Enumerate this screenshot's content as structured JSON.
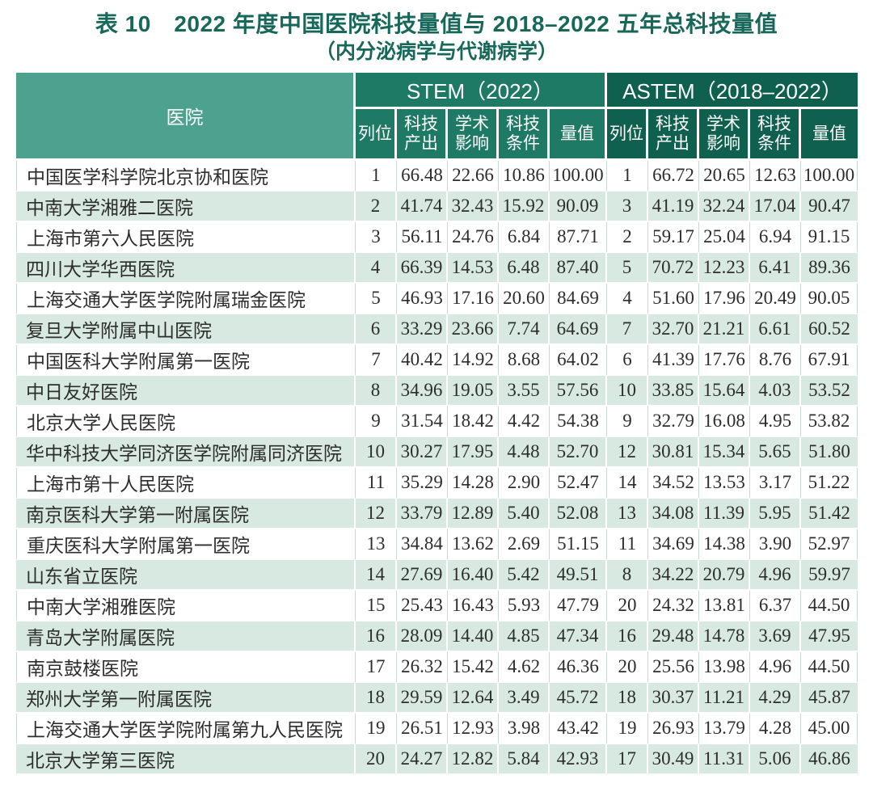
{
  "title": {
    "line1": "表 10　2022 年度中国医院科技量值与 2018–2022 五年总科技量值",
    "line2": "（内分泌病学与代谢病学）"
  },
  "colors": {
    "title_green": "#17685a",
    "hospital_header_bg": "#4ca28e",
    "stem_header_bg": "#1e7a64",
    "astem_header_bg": "#10604f",
    "stripe_mint": "#d8e9e1",
    "stripe_white": "#ffffff"
  },
  "table": {
    "hospital_header": "医院",
    "group_stem": "STEM（2022）",
    "group_astem": "ASTEM（2018–2022）",
    "sub_headers": [
      "列位",
      "科技产出",
      "学术影响",
      "科技条件",
      "量值"
    ],
    "rows": [
      {
        "hospital": "中国医学科学院北京协和医院",
        "stem": [
          "1",
          "66.48",
          "22.66",
          "10.86",
          "100.00"
        ],
        "astem": [
          "1",
          "66.72",
          "20.65",
          "12.63",
          "100.00"
        ]
      },
      {
        "hospital": "中南大学湘雅二医院",
        "stem": [
          "2",
          "41.74",
          "32.43",
          "15.92",
          "90.09"
        ],
        "astem": [
          "3",
          "41.19",
          "32.24",
          "17.04",
          "90.47"
        ]
      },
      {
        "hospital": "上海市第六人民医院",
        "stem": [
          "3",
          "56.11",
          "24.76",
          "6.84",
          "87.71"
        ],
        "astem": [
          "2",
          "59.17",
          "25.04",
          "6.94",
          "91.15"
        ]
      },
      {
        "hospital": "四川大学华西医院",
        "stem": [
          "4",
          "66.39",
          "14.53",
          "6.48",
          "87.40"
        ],
        "astem": [
          "5",
          "70.72",
          "12.23",
          "6.41",
          "89.36"
        ]
      },
      {
        "hospital": "上海交通大学医学院附属瑞金医院",
        "stem": [
          "5",
          "46.93",
          "17.16",
          "20.60",
          "84.69"
        ],
        "astem": [
          "4",
          "51.60",
          "17.96",
          "20.49",
          "90.05"
        ]
      },
      {
        "hospital": "复旦大学附属中山医院",
        "stem": [
          "6",
          "33.29",
          "23.66",
          "7.74",
          "64.69"
        ],
        "astem": [
          "7",
          "32.70",
          "21.21",
          "6.61",
          "60.52"
        ]
      },
      {
        "hospital": "中国医科大学附属第一医院",
        "stem": [
          "7",
          "40.42",
          "14.92",
          "8.68",
          "64.02"
        ],
        "astem": [
          "6",
          "41.39",
          "17.76",
          "8.76",
          "67.91"
        ]
      },
      {
        "hospital": "中日友好医院",
        "stem": [
          "8",
          "34.96",
          "19.05",
          "3.55",
          "57.56"
        ],
        "astem": [
          "10",
          "33.85",
          "15.64",
          "4.03",
          "53.52"
        ]
      },
      {
        "hospital": "北京大学人民医院",
        "stem": [
          "9",
          "31.54",
          "18.42",
          "4.42",
          "54.38"
        ],
        "astem": [
          "9",
          "32.79",
          "16.08",
          "4.95",
          "53.82"
        ]
      },
      {
        "hospital": "华中科技大学同济医学院附属同济医院",
        "stem": [
          "10",
          "30.27",
          "17.95",
          "4.48",
          "52.70"
        ],
        "astem": [
          "12",
          "30.81",
          "15.34",
          "5.65",
          "51.80"
        ]
      },
      {
        "hospital": "上海市第十人民医院",
        "stem": [
          "11",
          "35.29",
          "14.28",
          "2.90",
          "52.47"
        ],
        "astem": [
          "14",
          "34.52",
          "13.53",
          "3.17",
          "51.22"
        ]
      },
      {
        "hospital": "南京医科大学第一附属医院",
        "stem": [
          "12",
          "33.79",
          "12.89",
          "5.40",
          "52.08"
        ],
        "astem": [
          "13",
          "34.08",
          "11.39",
          "5.95",
          "51.42"
        ]
      },
      {
        "hospital": "重庆医科大学附属第一医院",
        "stem": [
          "13",
          "34.84",
          "13.62",
          "2.69",
          "51.15"
        ],
        "astem": [
          "11",
          "34.69",
          "14.38",
          "3.90",
          "52.97"
        ]
      },
      {
        "hospital": "山东省立医院",
        "stem": [
          "14",
          "27.69",
          "16.40",
          "5.42",
          "49.51"
        ],
        "astem": [
          "8",
          "34.22",
          "20.79",
          "4.96",
          "59.97"
        ]
      },
      {
        "hospital": "中南大学湘雅医院",
        "stem": [
          "15",
          "25.43",
          "16.43",
          "5.93",
          "47.79"
        ],
        "astem": [
          "20",
          "24.32",
          "13.81",
          "6.37",
          "44.50"
        ]
      },
      {
        "hospital": "青岛大学附属医院",
        "stem": [
          "16",
          "28.09",
          "14.40",
          "4.85",
          "47.34"
        ],
        "astem": [
          "16",
          "29.48",
          "14.78",
          "3.69",
          "47.95"
        ]
      },
      {
        "hospital": "南京鼓楼医院",
        "stem": [
          "17",
          "26.32",
          "15.42",
          "4.62",
          "46.36"
        ],
        "astem": [
          "20",
          "25.56",
          "13.98",
          "4.96",
          "44.50"
        ]
      },
      {
        "hospital": "郑州大学第一附属医院",
        "stem": [
          "18",
          "29.59",
          "12.64",
          "3.49",
          "45.72"
        ],
        "astem": [
          "18",
          "30.37",
          "11.21",
          "4.29",
          "45.87"
        ]
      },
      {
        "hospital": "上海交通大学医学院附属第九人民医院",
        "stem": [
          "19",
          "26.51",
          "12.93",
          "3.98",
          "43.42"
        ],
        "astem": [
          "19",
          "26.93",
          "13.79",
          "4.28",
          "45.00"
        ]
      },
      {
        "hospital": "北京大学第三医院",
        "stem": [
          "20",
          "24.27",
          "12.82",
          "5.84",
          "42.93"
        ],
        "astem": [
          "17",
          "30.49",
          "11.31",
          "5.06",
          "46.86"
        ]
      }
    ]
  }
}
